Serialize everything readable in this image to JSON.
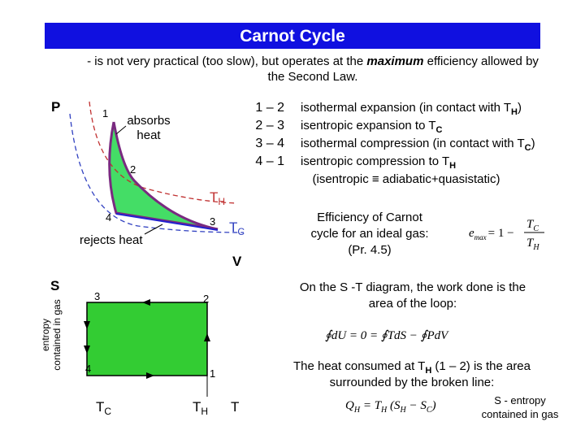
{
  "header": {
    "title": "Carnot Cycle",
    "subtitle": {
      "before": "- is not very practical (too slow), but operates at the ",
      "emphasis": "maximum",
      "after": " efficiency allowed by",
      "line2": "the Second Law."
    }
  },
  "pv_diagram": {
    "y_axis": "P",
    "x_axis": "V",
    "points": [
      "1",
      "2",
      "3",
      "4"
    ],
    "absorbs": [
      "absorbs",
      "heat"
    ],
    "rejects": "rejects heat",
    "hot_isotherm": {
      "symbol": "T",
      "sub": "H"
    },
    "cold_isotherm": {
      "symbol": "T",
      "sub": "C"
    }
  },
  "steps": [
    {
      "range": "1 – 2",
      "text": "isothermal expansion (in contact with T",
      "sub": "H",
      "tail": ")"
    },
    {
      "range": "2 – 3",
      "text": "isentropic expansion to T",
      "sub": "C"
    },
    {
      "range": "3 – 4",
      "text": "isothermal compression (in contact with T",
      "sub": "C",
      "tail": ")"
    },
    {
      "range": "4 – 1",
      "text": "isentropic compression to T",
      "sub": "H"
    }
  ],
  "step_note": "(isentropic ≡ adiabatic+quasistatic)",
  "efficiency": {
    "lines": [
      "Efficiency of Carnot",
      "cycle for an ideal gas:",
      "(Pr. 4.5)"
    ],
    "formula": {
      "e": "e",
      "e_sub": "max",
      "mid": "= 1 −",
      "num": "T",
      "num_sub": "C",
      "den": "T",
      "den_sub": "H"
    }
  },
  "ts_diagram": {
    "y_axis": "S",
    "y_axis_note": [
      "entropy",
      "contained in gas"
    ],
    "points": [
      "3",
      "2",
      "4",
      "1"
    ],
    "x_ticks": [
      {
        "symbol": "T",
        "sub": "C"
      },
      {
        "symbol": "T",
        "sub": "H"
      }
    ],
    "x_axis": "T"
  },
  "work_text": [
    "On the S -T diagram, the work done is the",
    "area of the loop:"
  ],
  "work_equation": "∮dU = 0 = ∮TdS − ∮PdV",
  "heat_text": {
    "before": "The heat consumed at T",
    "sub": "H",
    "after": " (1 – 2) is the area",
    "line2": "surrounded by the broken line:"
  },
  "heat_equation": {
    "lhs": "Q",
    "lhs_sub": "H",
    "eq": " = T",
    "t_sub": "H",
    "open": " (S",
    "s1_sub": "H",
    "minus": " − S",
    "s2_sub": "C",
    "close": ")"
  },
  "footnote": [
    "S  - entropy",
    "contained in gas"
  ]
}
